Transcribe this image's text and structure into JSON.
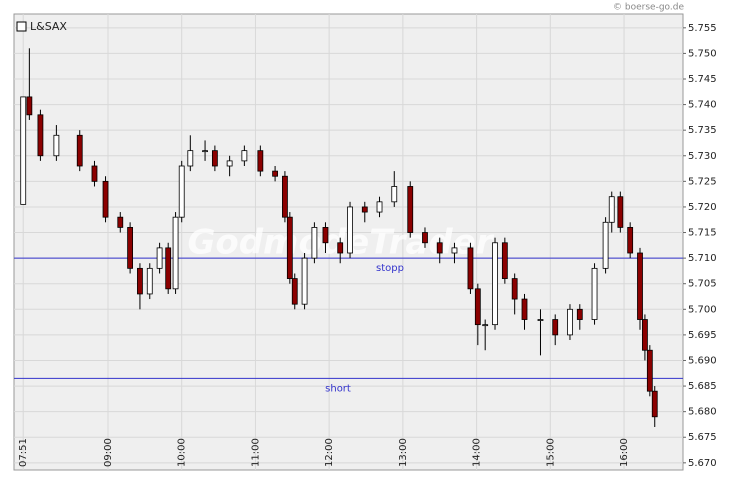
{
  "chart_data": {
    "type": "candlestick",
    "legend": "L&SAX",
    "credit": "© boerse-go.de",
    "watermark": "GodmodeTrader",
    "up_color": "#ffffff",
    "down_color": "#8b0000",
    "grid": true,
    "x": [
      471,
      476,
      485,
      498,
      517,
      529,
      538,
      550,
      558,
      566,
      574,
      582,
      589,
      595,
      600,
      607,
      619,
      627,
      639,
      651,
      664,
      676,
      684,
      688,
      692,
      700,
      708,
      717,
      729,
      737,
      749,
      761,
      773,
      786,
      798,
      810,
      822,
      835,
      841,
      847,
      855,
      863,
      871,
      879,
      892,
      904,
      916,
      924,
      936,
      945,
      950,
      957,
      965,
      973,
      977,
      981,
      985
    ],
    "open": [
      5.7205,
      5.7415,
      5.738,
      5.73,
      5.734,
      5.728,
      5.725,
      5.718,
      5.716,
      5.708,
      5.703,
      5.708,
      5.712,
      5.704,
      5.718,
      5.728,
      5.731,
      5.731,
      5.728,
      5.729,
      5.731,
      5.727,
      5.726,
      5.718,
      5.706,
      5.701,
      5.71,
      5.716,
      5.713,
      5.711,
      5.72,
      5.719,
      5.721,
      5.724,
      5.715,
      5.713,
      5.711,
      5.712,
      5.704,
      5.697,
      5.697,
      5.713,
      5.706,
      5.702,
      5.698,
      5.698,
      5.695,
      5.7,
      5.698,
      5.708,
      5.717,
      5.722,
      5.716,
      5.711,
      5.698,
      5.692,
      5.684
    ],
    "high": [
      5.7415,
      5.751,
      5.739,
      5.736,
      5.735,
      5.729,
      5.726,
      5.719,
      5.717,
      5.709,
      5.709,
      5.713,
      5.713,
      5.719,
      5.729,
      5.734,
      5.733,
      5.732,
      5.73,
      5.732,
      5.732,
      5.728,
      5.727,
      5.719,
      5.707,
      5.711,
      5.717,
      5.717,
      5.714,
      5.721,
      5.721,
      5.722,
      5.727,
      5.725,
      5.716,
      5.714,
      5.713,
      5.713,
      5.705,
      5.698,
      5.714,
      5.714,
      5.707,
      5.703,
      5.7,
      5.699,
      5.701,
      5.701,
      5.709,
      5.718,
      5.723,
      5.723,
      5.717,
      5.712,
      5.699,
      5.693,
      5.685
    ],
    "low": [
      5.7205,
      5.737,
      5.729,
      5.729,
      5.727,
      5.724,
      5.717,
      5.715,
      5.707,
      5.7,
      5.702,
      5.707,
      5.703,
      5.703,
      5.717,
      5.727,
      5.729,
      5.727,
      5.726,
      5.728,
      5.726,
      5.725,
      5.717,
      5.705,
      5.7,
      5.7,
      5.709,
      5.711,
      5.709,
      5.71,
      5.717,
      5.718,
      5.72,
      5.714,
      5.712,
      5.709,
      5.709,
      5.703,
      5.693,
      5.692,
      5.696,
      5.705,
      5.699,
      5.696,
      5.691,
      5.693,
      5.694,
      5.696,
      5.697,
      5.707,
      5.715,
      5.715,
      5.71,
      5.696,
      5.69,
      5.683,
      5.677
    ],
    "close": [
      5.7415,
      5.738,
      5.73,
      5.734,
      5.728,
      5.725,
      5.718,
      5.716,
      5.708,
      5.703,
      5.708,
      5.712,
      5.704,
      5.718,
      5.728,
      5.731,
      5.731,
      5.728,
      5.729,
      5.731,
      5.727,
      5.726,
      5.718,
      5.706,
      5.701,
      5.71,
      5.716,
      5.713,
      5.711,
      5.72,
      5.719,
      5.721,
      5.724,
      5.715,
      5.713,
      5.711,
      5.712,
      5.704,
      5.697,
      5.697,
      5.713,
      5.706,
      5.702,
      5.698,
      5.698,
      5.695,
      5.7,
      5.698,
      5.708,
      5.717,
      5.722,
      5.716,
      5.711,
      5.698,
      5.692,
      5.684,
      5.679
    ],
    "reference_lines": [
      {
        "value": 5.71,
        "label": "stopp",
        "color": "#3333cc"
      },
      {
        "value": 5.6865,
        "label": "short",
        "color": "#3333cc"
      }
    ],
    "xlim": [
      463.5,
      1008
    ],
    "xticks": [
      {
        "value": 471,
        "label": "07:51"
      },
      {
        "value": 540,
        "label": "09:00"
      },
      {
        "value": 600,
        "label": "10:00"
      },
      {
        "value": 660,
        "label": "11:00"
      },
      {
        "value": 720,
        "label": "12:00"
      },
      {
        "value": 780,
        "label": "13:00"
      },
      {
        "value": 840,
        "label": "14:00"
      },
      {
        "value": 900,
        "label": "15:00"
      },
      {
        "value": 960,
        "label": "16:00"
      }
    ],
    "ylim": [
      5.6686,
      5.7577
    ],
    "yticks": [
      {
        "value": 5.67,
        "label": "5.670"
      },
      {
        "value": 5.675,
        "label": "5.675"
      },
      {
        "value": 5.68,
        "label": "5.680"
      },
      {
        "value": 5.685,
        "label": "5.685"
      },
      {
        "value": 5.69,
        "label": "5.690"
      },
      {
        "value": 5.695,
        "label": "5.695"
      },
      {
        "value": 5.7,
        "label": "5.700"
      },
      {
        "value": 5.705,
        "label": "5.705"
      },
      {
        "value": 5.71,
        "label": "5.710"
      },
      {
        "value": 5.715,
        "label": "5.715"
      },
      {
        "value": 5.72,
        "label": "5.720"
      },
      {
        "value": 5.725,
        "label": "5.725"
      },
      {
        "value": 5.73,
        "label": "5.730"
      },
      {
        "value": 5.735,
        "label": "5.735"
      },
      {
        "value": 5.74,
        "label": "5.740"
      },
      {
        "value": 5.745,
        "label": "5.745"
      },
      {
        "value": 5.75,
        "label": "5.750"
      },
      {
        "value": 5.755,
        "label": "5.755"
      }
    ]
  }
}
